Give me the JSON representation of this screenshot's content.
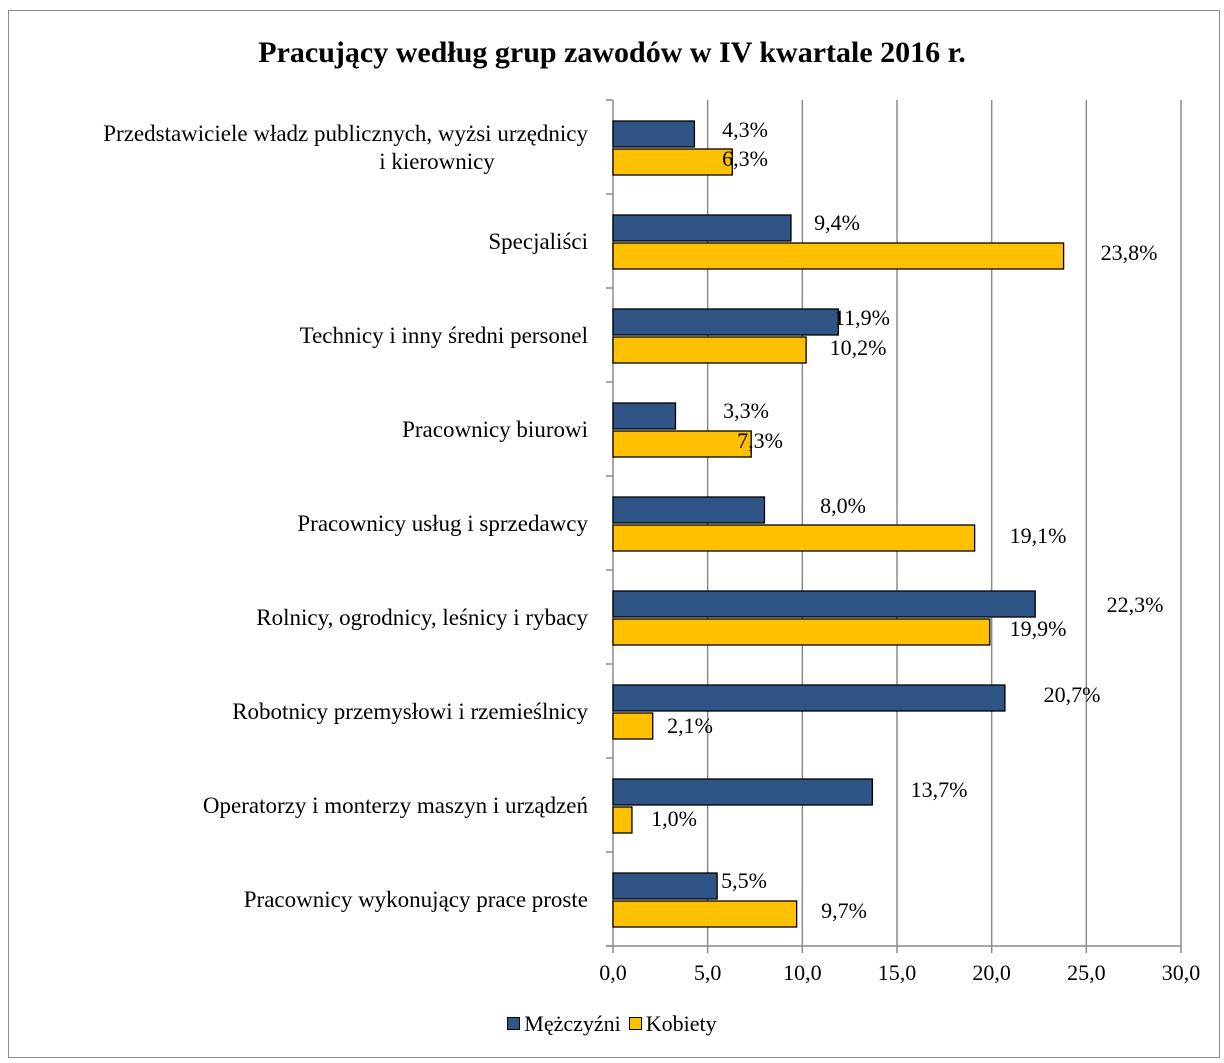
{
  "chart_data": {
    "type": "bar",
    "orientation": "horizontal",
    "title": "Pracujący według grup zawodów w IV kwartale 2016 r.",
    "categories": [
      [
        "Przedstawiciele władz publicznych, wyżsi urzędnicy",
        "i kierownicy"
      ],
      [
        "Specjaliści"
      ],
      [
        "Technicy i inny średni personel"
      ],
      [
        "Pracownicy biurowi"
      ],
      [
        "Pracownicy usług i sprzedawcy"
      ],
      [
        "Rolnicy, ogrodnicy, leśnicy i rybacy"
      ],
      [
        "Robotnicy przemysłowi i rzemieślnicy"
      ],
      [
        "Operatorzy i monterzy maszyn i urządzeń"
      ],
      [
        "Pracownicy wykonujący prace proste"
      ]
    ],
    "series": [
      {
        "name": "Mężczyźni",
        "color": "#2e5585",
        "values": [
          4.3,
          9.4,
          11.9,
          3.3,
          8.0,
          22.3,
          20.7,
          13.7,
          5.5
        ],
        "labels": [
          "4,3%",
          "9,4%",
          "11,9%",
          "3,3%",
          "8,0%",
          "22,3%",
          "20,7%",
          "13,7%",
          "5,5%"
        ]
      },
      {
        "name": "Kobiety",
        "color": "#ffc000",
        "values": [
          6.3,
          23.8,
          10.2,
          7.3,
          19.1,
          19.9,
          2.1,
          1.0,
          9.7
        ],
        "labels": [
          "6,3%",
          "23,8%",
          "10,2%",
          "7,3%",
          "19,1%",
          "19,9%",
          "2,1%",
          "1,0%",
          "9,7%"
        ]
      }
    ],
    "xlim": [
      0,
      30
    ],
    "x_ticks": [
      "0,0",
      "5,0",
      "10,0",
      "15,0",
      "20,0",
      "25,0",
      "30,0"
    ],
    "grid": true,
    "legend_position": "bottom"
  }
}
